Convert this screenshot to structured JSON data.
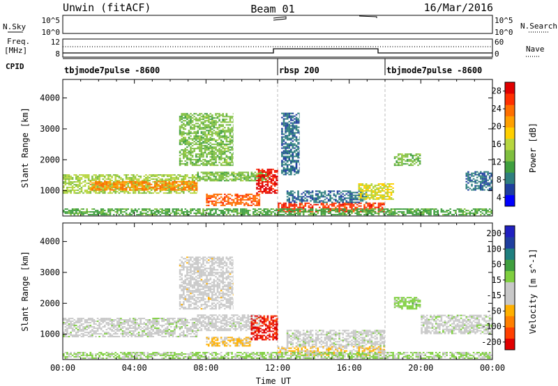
{
  "header": {
    "station": "Unwin (fitACF)",
    "beam": "Beam 01",
    "date": "16/Mar/2016"
  },
  "status_panel": {
    "nsky_label": "N.Sky",
    "nsearch_label": "N.Search",
    "freq_label_line1": "Freq.",
    "freq_label_line2": "[MHz]",
    "nave_label": "Nave",
    "cpid_label": "CPID",
    "nsky_ticks_left": [
      "10^5",
      "10^0"
    ],
    "nsky_ticks_right": [
      "10^5",
      "10^0"
    ],
    "freq_ticks": [
      "12",
      "8"
    ],
    "nave_ticks": [
      "60",
      "0"
    ]
  },
  "cpid_segments": [
    {
      "label": "tbjmode7pulse -8600",
      "start_hour": 0
    },
    {
      "label": "rbsp 200",
      "start_hour": 12
    },
    {
      "label": "tbjmode7pulse -8600",
      "start_hour": 18
    }
  ],
  "chart_data": [
    {
      "type": "heatmap",
      "parameter": "Power",
      "colorbar_label": "Power [dB]",
      "colorbar_ticks": [
        "28",
        "24",
        "20",
        "16",
        "12",
        "8",
        "4"
      ],
      "colorbar_range": [
        0,
        30
      ],
      "colors": [
        "#0000ff",
        "#1f3f9f",
        "#2f7f7f",
        "#3f9f3f",
        "#7fbf3f",
        "#b7d63f",
        "#ffcf00",
        "#ffa000",
        "#ff6f00",
        "#ff3000",
        "#e00000"
      ],
      "ylabel": "Slant Range [km]",
      "yticks": [
        1000,
        2000,
        3000,
        4000
      ],
      "ylim": [
        180,
        4600
      ],
      "xlabel": "",
      "xlim": [
        0,
        24
      ],
      "xtick_labels": [
        "00:00",
        "04:00",
        "08:00",
        "12:00",
        "16:00",
        "20:00",
        "00:00"
      ],
      "regions": [
        {
          "t0": 0,
          "t1": 7.5,
          "r0": 900,
          "r1": 1500,
          "v": 14
        },
        {
          "t0": 1.5,
          "t1": 7.5,
          "r0": 1000,
          "r1": 1300,
          "v": 22
        },
        {
          "t0": 7.5,
          "t1": 11.5,
          "r0": 1300,
          "r1": 1600,
          "v": 12
        },
        {
          "t0": 8.0,
          "t1": 11.0,
          "r0": 500,
          "r1": 900,
          "v": 24
        },
        {
          "t0": 10.8,
          "t1": 12.0,
          "r0": 900,
          "r1": 1700,
          "v": 28
        },
        {
          "t0": 6.5,
          "t1": 9.5,
          "r0": 1800,
          "r1": 3500,
          "v": 12
        },
        {
          "t0": 12.0,
          "t1": 18.0,
          "r0": 300,
          "r1": 600,
          "v": 26
        },
        {
          "t0": 12.5,
          "t1": 17.0,
          "r0": 600,
          "r1": 1000,
          "v": 6
        },
        {
          "t0": 12.2,
          "t1": 13.2,
          "r0": 1500,
          "r1": 3500,
          "v": 6
        },
        {
          "t0": 16.5,
          "t1": 18.5,
          "r0": 700,
          "r1": 1200,
          "v": 16
        },
        {
          "t0": 18.5,
          "t1": 20.0,
          "r0": 1800,
          "r1": 2200,
          "v": 12
        },
        {
          "t0": 22.5,
          "t1": 24.0,
          "r0": 1000,
          "r1": 1600,
          "v": 6
        },
        {
          "t0": 0,
          "t1": 24,
          "r0": 200,
          "r1": 400,
          "v": 10
        }
      ]
    },
    {
      "type": "heatmap",
      "parameter": "Velocity",
      "colorbar_label": "Velocity [m s^-1]",
      "colorbar_ticks": [
        "200",
        "100",
        "50",
        "15",
        "-15",
        "-50",
        "-100",
        "-200"
      ],
      "colorbar_range": [
        -250,
        250
      ],
      "colors": [
        "#e00000",
        "#ff4000",
        "#ff8000",
        "#ffb000",
        "#c8c8c8",
        "#c8c8c8",
        "#7fcf3f",
        "#3f9f3f",
        "#1f7f7f",
        "#1f3f9f",
        "#2020c0"
      ],
      "ylabel": "Slant Range [km]",
      "yticks": [
        1000,
        2000,
        3000,
        4000
      ],
      "ylim": [
        180,
        4600
      ],
      "xlabel": "Time UT",
      "xlim": [
        0,
        24
      ],
      "xtick_labels": [
        "00:00",
        "04:00",
        "08:00",
        "12:00",
        "16:00",
        "20:00",
        "00:00"
      ],
      "regions": [
        {
          "t0": 0,
          "t1": 7.5,
          "r0": 900,
          "r1": 1500,
          "v": 0
        },
        {
          "t0": 7.5,
          "t1": 11.0,
          "r0": 1100,
          "r1": 1600,
          "v": -5
        },
        {
          "t0": 8.0,
          "t1": 10.5,
          "r0": 600,
          "r1": 900,
          "v": -80
        },
        {
          "t0": 10.5,
          "t1": 12.0,
          "r0": 800,
          "r1": 1600,
          "v": -220
        },
        {
          "t0": 6.5,
          "t1": 9.5,
          "r0": 1800,
          "r1": 3500,
          "v": -40
        },
        {
          "t0": 12.0,
          "t1": 18.0,
          "r0": 300,
          "r1": 600,
          "v": -70
        },
        {
          "t0": 12.5,
          "t1": 18.0,
          "r0": 600,
          "r1": 1100,
          "v": 0
        },
        {
          "t0": 18.5,
          "t1": 20.0,
          "r0": 1800,
          "r1": 2200,
          "v": 40
        },
        {
          "t0": 20.0,
          "t1": 24.0,
          "r0": 1000,
          "r1": 1600,
          "v": 0
        },
        {
          "t0": 0,
          "t1": 24,
          "r0": 200,
          "r1": 400,
          "v": 30
        }
      ]
    }
  ]
}
